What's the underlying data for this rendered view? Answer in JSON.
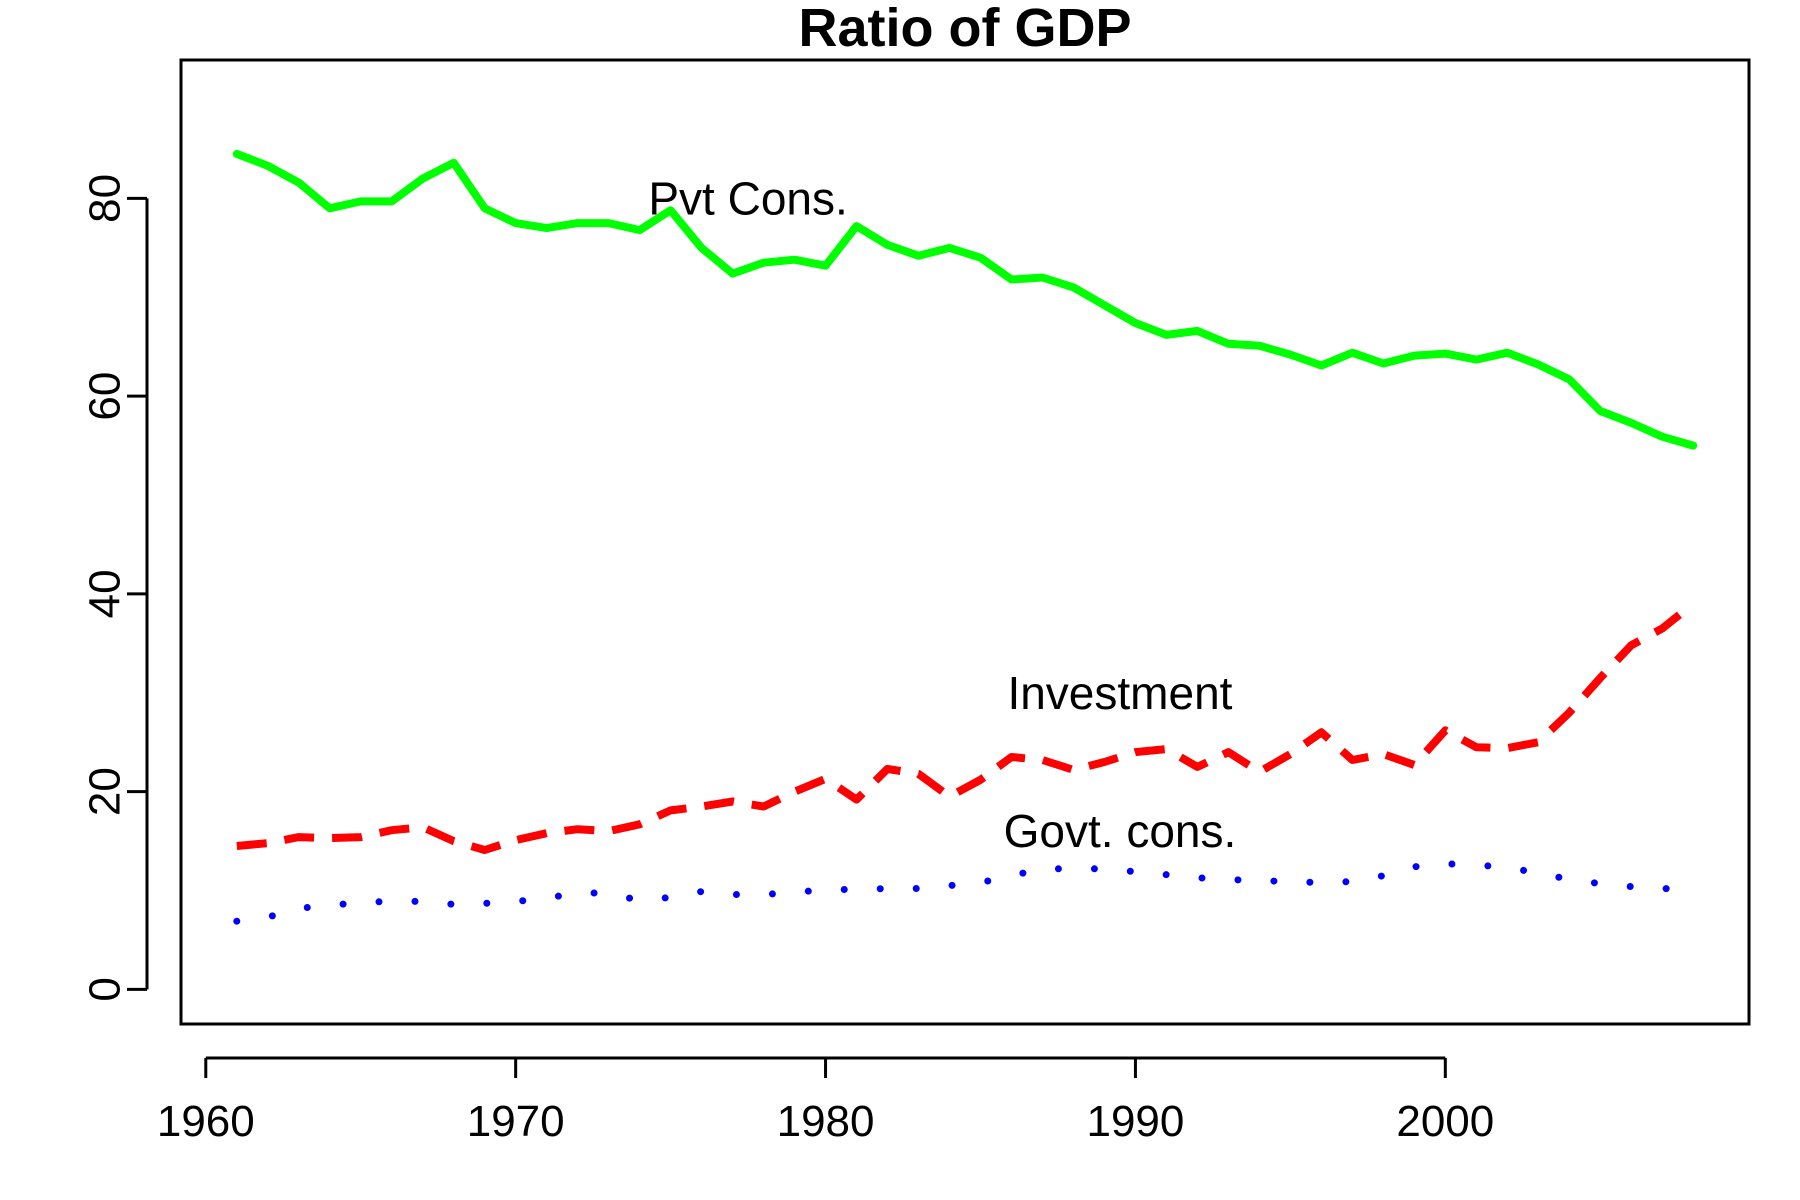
{
  "chart_data": {
    "type": "line",
    "title": "Ratio of GDP",
    "xlabel": "",
    "ylabel": "",
    "xlim": [
      1959.2,
      2009.8
    ],
    "ylim": [
      -3.5,
      94
    ],
    "x_ticks": [
      1960,
      1970,
      1980,
      1990,
      2000
    ],
    "x_tick_labels": [
      "1960",
      "1970",
      "1980",
      "1990",
      "2000"
    ],
    "y_ticks": [
      0,
      20,
      40,
      60,
      80
    ],
    "y_tick_labels": [
      "0",
      "20",
      "40",
      "60",
      "80"
    ],
    "grid": false,
    "legend": "none",
    "series": [
      {
        "name": "Pvt Cons.",
        "color": "#00ff00",
        "line_style": "solid",
        "x": [
          1961,
          1962,
          1963,
          1964,
          1965,
          1966,
          1967,
          1968,
          1969,
          1970,
          1971,
          1972,
          1973,
          1974,
          1975,
          1976,
          1977,
          1978,
          1979,
          1980,
          1981,
          1982,
          1983,
          1984,
          1985,
          1986,
          1987,
          1988,
          1989,
          1990,
          1991,
          1992,
          1993,
          1994,
          1995,
          1996,
          1997,
          1998,
          1999,
          2000,
          2001,
          2002,
          2003,
          2004,
          2005,
          2006,
          2007,
          2008
        ],
        "values": [
          84.5,
          83.3,
          81.6,
          79.0,
          79.7,
          79.7,
          82.0,
          83.6,
          79.0,
          77.5,
          77.0,
          77.5,
          77.5,
          76.8,
          78.8,
          75.0,
          72.4,
          73.5,
          73.8,
          73.2,
          77.2,
          75.3,
          74.2,
          75.0,
          74.0,
          71.8,
          72.0,
          71.0,
          69.2,
          67.4,
          66.2,
          66.6,
          65.3,
          65.1,
          64.2,
          63.1,
          64.4,
          63.3,
          64.1,
          64.3,
          63.7,
          64.4,
          63.2,
          61.7,
          58.5,
          57.3,
          55.9,
          55.0
        ]
      },
      {
        "name": "Investment",
        "color": "#ff0000",
        "line_style": "dashed",
        "x": [
          1961,
          1962,
          1963,
          1964,
          1965,
          1966,
          1967,
          1968,
          1969,
          1970,
          1971,
          1972,
          1973,
          1974,
          1975,
          1976,
          1977,
          1978,
          1979,
          1980,
          1981,
          1982,
          1983,
          1984,
          1985,
          1986,
          1987,
          1988,
          1989,
          1990,
          1991,
          1992,
          1993,
          1994,
          1995,
          1996,
          1997,
          1998,
          1999,
          2000,
          2001,
          2002,
          2003,
          2004,
          2005,
          2006,
          2007,
          2008
        ],
        "values": [
          14.5,
          14.8,
          15.4,
          15.3,
          15.4,
          16.1,
          16.4,
          15.0,
          14.1,
          15.1,
          15.8,
          16.2,
          16.0,
          16.7,
          18.1,
          18.5,
          19.0,
          18.5,
          20.0,
          21.3,
          19.2,
          22.3,
          21.8,
          19.5,
          21.2,
          23.5,
          23.2,
          22.2,
          23.0,
          24.0,
          24.3,
          22.5,
          24.0,
          22.0,
          23.8,
          26.0,
          23.2,
          23.8,
          22.7,
          26.2,
          24.5,
          24.4,
          25.0,
          28.0,
          31.5,
          34.8,
          36.5,
          39.0
        ]
      },
      {
        "name": "Govt. cons.",
        "color": "#0000ff",
        "line_style": "dotted",
        "x": [
          1961,
          1962,
          1963,
          1964,
          1965,
          1966,
          1967,
          1968,
          1969,
          1970,
          1971,
          1972,
          1973,
          1974,
          1975,
          1976,
          1977,
          1978,
          1979,
          1980,
          1981,
          1982,
          1983,
          1984,
          1985,
          1986,
          1987,
          1988,
          1989,
          1990,
          1991,
          1992,
          1993,
          1994,
          1995,
          1996,
          1997,
          1998,
          1999,
          2000,
          2001,
          2002,
          2003,
          2004,
          2005,
          2006,
          2007,
          2008
        ],
        "values": [
          6.9,
          7.3,
          8.2,
          8.5,
          8.8,
          8.9,
          8.9,
          8.6,
          8.7,
          8.9,
          9.2,
          9.8,
          9.7,
          9.0,
          9.3,
          9.9,
          9.6,
          9.6,
          9.8,
          10.1,
          10.1,
          10.2,
          10.2,
          10.5,
          10.8,
          11.5,
          12.2,
          12.2,
          12.2,
          11.9,
          11.6,
          11.3,
          11.1,
          11.0,
          10.9,
          10.8,
          10.9,
          11.5,
          12.4,
          12.7,
          12.6,
          12.3,
          11.8,
          11.1,
          10.7,
          10.4,
          10.2,
          10.1
        ]
      }
    ],
    "annotations": [
      {
        "text": "Pvt Cons.",
        "x": 1977.5,
        "y": 80.0
      },
      {
        "text": "Investment",
        "x": 1989.5,
        "y": 30.0
      },
      {
        "text": "Govt. cons.",
        "x": 1989.5,
        "y": 16.0
      }
    ]
  }
}
